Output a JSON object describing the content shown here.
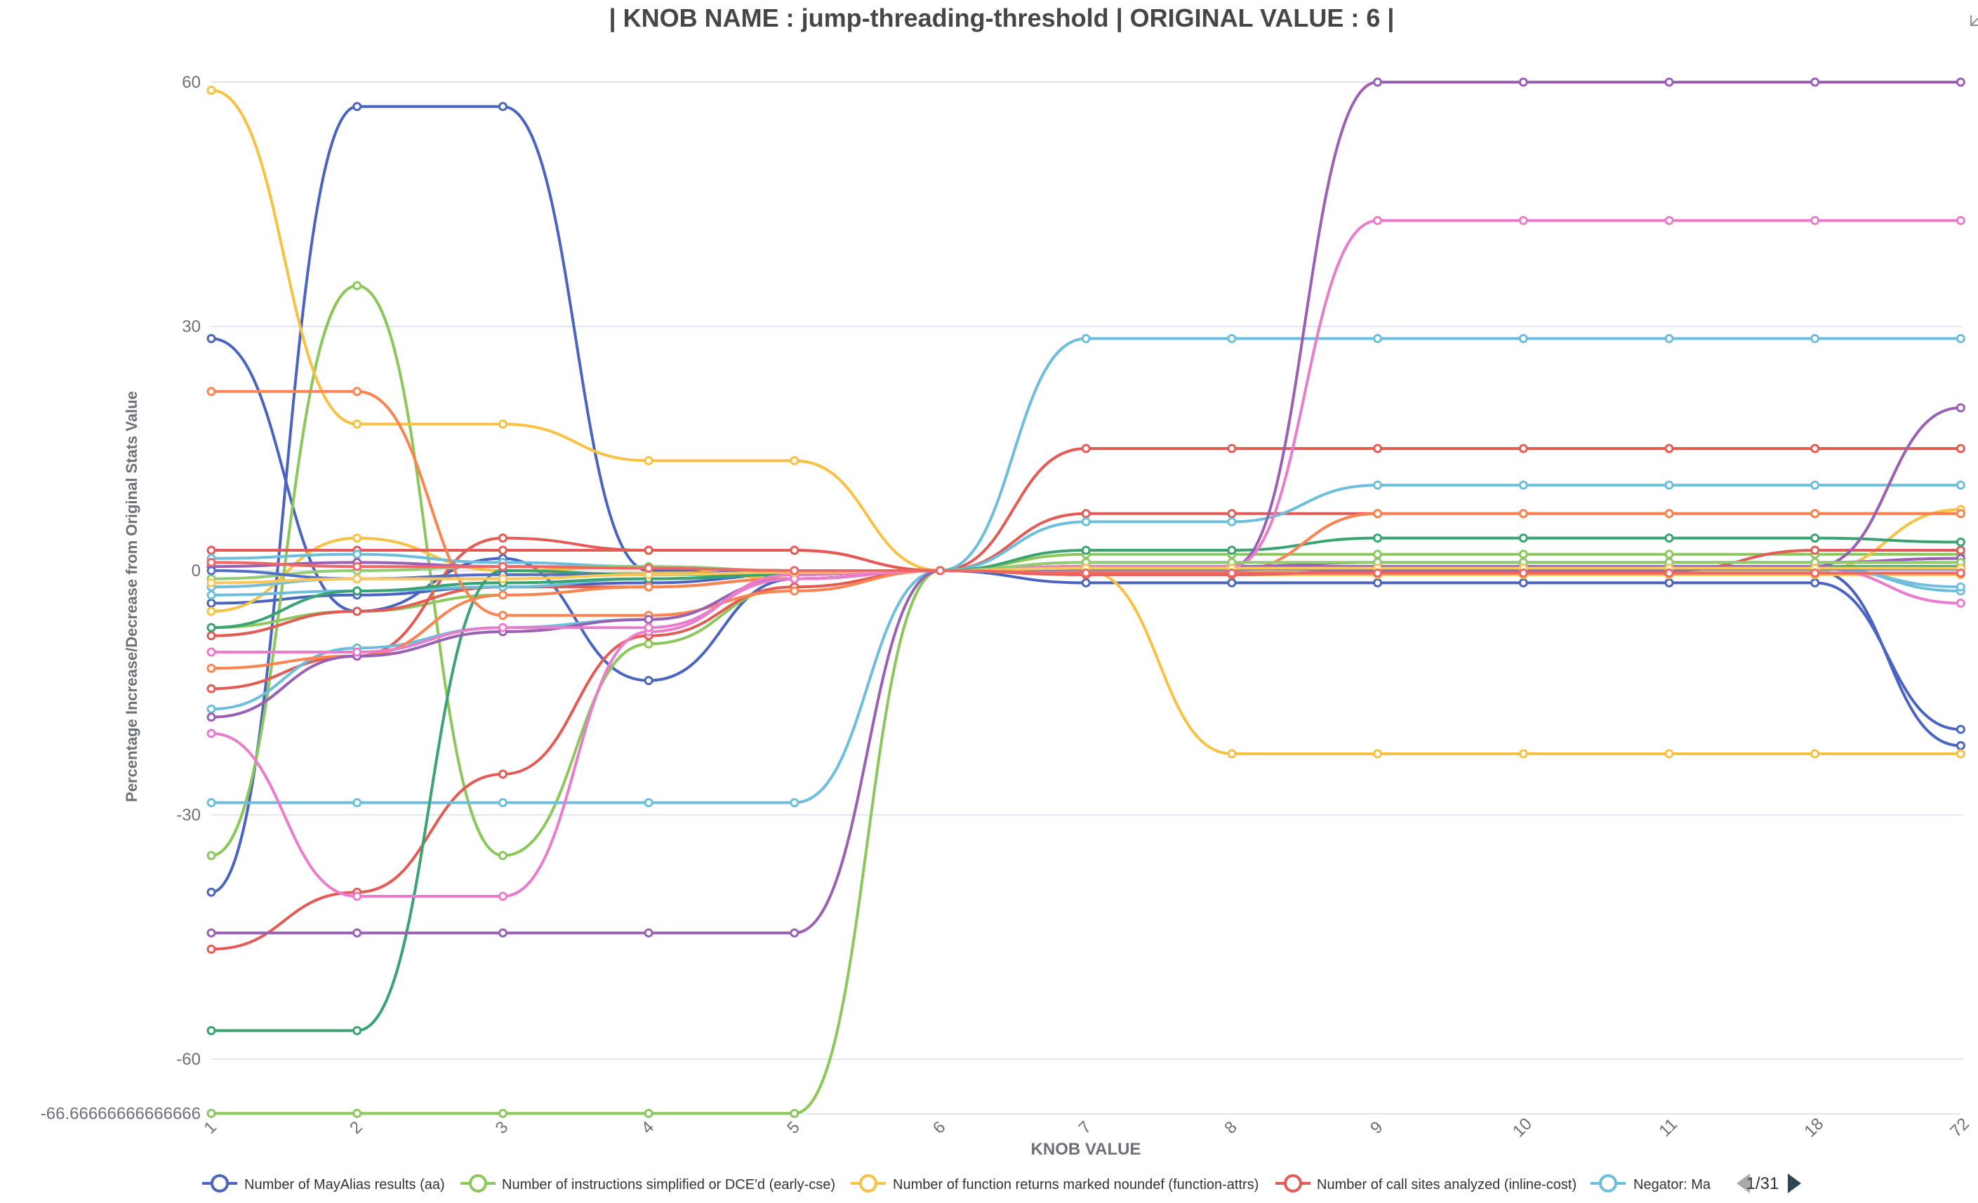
{
  "chart_data": {
    "type": "line",
    "title": "| KNOB NAME : jump-threading-threshold | ORIGINAL VALUE : 6 |",
    "xlabel": "KNOB VALUE",
    "ylabel": "Percentage Increase/Decrease from Original Stats Value",
    "categories": [
      "1",
      "2",
      "3",
      "4",
      "5",
      "6",
      "7",
      "8",
      "9",
      "10",
      "11",
      "18",
      "72"
    ],
    "y_ticks": [
      "60",
      "30",
      "0",
      "-30",
      "-60",
      "-66.66666666666666"
    ],
    "ylim": [
      -66.66666666666666,
      60
    ],
    "grid": true,
    "corner_icon": "expand-icon",
    "legend": {
      "position": "bottom",
      "page": "1/31",
      "items": [
        {
          "name": "Number of MayAlias results (aa)",
          "color": "#4a64bf"
        },
        {
          "name": "Number of instructions simplified or DCE'd (early-cse)",
          "color": "#8cc75c"
        },
        {
          "name": "Number of function returns marked noundef (function-attrs)",
          "color": "#f7c243"
        },
        {
          "name": "Number of call sites analyzed (inline-cost)",
          "color": "#e45b55"
        },
        {
          "name": "Negator: Ma",
          "color": "#6cbedc"
        }
      ]
    },
    "series": [
      {
        "color": "#4a64bf",
        "values": [
          -39.5,
          57,
          57,
          0,
          0,
          0,
          0,
          0,
          0,
          0,
          0,
          0,
          -21.5
        ]
      },
      {
        "color": "#4a64bf",
        "values": [
          28.5,
          -5,
          1.5,
          -13.5,
          -1,
          0,
          -1.5,
          -1.5,
          -1.5,
          -1.5,
          -1.5,
          -1.5,
          -19.5
        ]
      },
      {
        "color": "#4a64bf",
        "values": [
          -4,
          -3,
          -2,
          -1.5,
          -0.5,
          0,
          0.3,
          0.3,
          0.3,
          0.3,
          0.3,
          0.3,
          0.5
        ]
      },
      {
        "color": "#8cc75c",
        "values": [
          -35,
          35,
          -35,
          -9,
          -2,
          0,
          2,
          2,
          2,
          2,
          2,
          2,
          2
        ]
      },
      {
        "color": "#8cc75c",
        "values": [
          -66.67,
          -66.67,
          -66.67,
          -66.67,
          -66.67,
          0,
          0.5,
          0.5,
          0.5,
          0.5,
          0.5,
          0.5,
          0.5
        ]
      },
      {
        "color": "#8cc75c",
        "values": [
          -7,
          -5,
          -3,
          -2,
          -1,
          0,
          0.3,
          0.3,
          0.3,
          0.3,
          0.3,
          0.3,
          0.3
        ]
      },
      {
        "color": "#f7c243",
        "values": [
          59,
          18,
          18,
          13.5,
          13.5,
          0,
          0,
          -22.5,
          -22.5,
          -22.5,
          -22.5,
          -22.5,
          -22.5
        ]
      },
      {
        "color": "#f7c243",
        "values": [
          -5,
          4,
          0,
          0.5,
          -1,
          0,
          0,
          0,
          0,
          0,
          0,
          0,
          7.5
        ]
      },
      {
        "color": "#f7c243",
        "values": [
          -2,
          -1,
          -0.5,
          -0.3,
          -0.2,
          0,
          -0.5,
          -0.5,
          -0.5,
          -0.5,
          -0.5,
          -0.5,
          -0.5
        ]
      },
      {
        "color": "#e45b55",
        "values": [
          -46.5,
          -39.5,
          -25,
          -8,
          -2,
          0,
          15,
          15,
          15,
          15,
          15,
          15,
          15
        ]
      },
      {
        "color": "#e45b55",
        "values": [
          -14.5,
          -10.5,
          4,
          2.5,
          2.5,
          0,
          7,
          7,
          7,
          7,
          7,
          7,
          7
        ]
      },
      {
        "color": "#e45b55",
        "values": [
          2.5,
          2.5,
          2.5,
          2.5,
          2.5,
          0,
          -0.5,
          -0.5,
          0,
          0,
          0,
          2.5,
          2.5
        ]
      },
      {
        "color": "#e45b55",
        "values": [
          -8,
          -5,
          -2,
          -2,
          -1,
          0,
          1,
          1,
          1,
          1,
          1,
          1,
          1
        ]
      },
      {
        "color": "#6cbedc",
        "values": [
          -28.5,
          -28.5,
          -28.5,
          -28.5,
          -28.5,
          0,
          28.5,
          28.5,
          28.5,
          28.5,
          28.5,
          28.5,
          28.5
        ]
      },
      {
        "color": "#6cbedc",
        "values": [
          -17,
          -9.5,
          -7,
          -6,
          -1,
          0,
          6,
          6,
          10.5,
          10.5,
          10.5,
          10.5,
          10.5
        ]
      },
      {
        "color": "#6cbedc",
        "values": [
          1.5,
          2,
          1,
          0.5,
          0,
          0,
          0.5,
          0.5,
          0.5,
          0.5,
          0.5,
          0.5,
          -2.5
        ]
      },
      {
        "color": "#6cbedc",
        "values": [
          -3,
          -2.5,
          -2,
          -1,
          -0.5,
          0,
          0.3,
          0.3,
          0.3,
          0.3,
          0.3,
          0.3,
          0.3
        ]
      },
      {
        "color": "#3ba272",
        "values": [
          -56.5,
          -56.5,
          0,
          -0.5,
          -0.5,
          0,
          2.5,
          2.5,
          4,
          4,
          4,
          4,
          3.5
        ]
      },
      {
        "color": "#3ba272",
        "values": [
          -7,
          -2.5,
          -1.5,
          -1,
          -0.5,
          0,
          0.5,
          0.5,
          0.5,
          0.5,
          0.5,
          0.5,
          0.5
        ]
      },
      {
        "color": "#fc8452",
        "values": [
          22,
          22,
          -5.5,
          -5.5,
          -2.5,
          0,
          0,
          0,
          7,
          7,
          7,
          7,
          7
        ]
      },
      {
        "color": "#fc8452",
        "values": [
          -12,
          -10.5,
          -3,
          -2,
          -1,
          0,
          0.3,
          0.3,
          0.3,
          0.3,
          0.3,
          0.3,
          0.3
        ]
      },
      {
        "color": "#9a60b4",
        "values": [
          -44.5,
          -44.5,
          -44.5,
          -44.5,
          -44.5,
          0,
          0.5,
          0.5,
          60,
          60,
          60,
          60,
          60
        ]
      },
      {
        "color": "#9a60b4",
        "values": [
          -18,
          -10.5,
          -7.5,
          -6,
          -1,
          0,
          0.5,
          0.5,
          0.5,
          0.5,
          0.5,
          0.5,
          20
        ]
      },
      {
        "color": "#9a60b4",
        "values": [
          0.5,
          1,
          0.5,
          0.3,
          0,
          0,
          0.5,
          0.5,
          1,
          1,
          1,
          1,
          1.5
        ]
      },
      {
        "color": "#ea7ccc",
        "values": [
          -20,
          -40,
          -40,
          -7.5,
          -0.5,
          0,
          0.5,
          0.5,
          43,
          43,
          43,
          43,
          43
        ]
      },
      {
        "color": "#ea7ccc",
        "values": [
          -10,
          -10,
          -7,
          -7,
          -1,
          0,
          0.3,
          0.3,
          0.3,
          0.3,
          0.3,
          0.3,
          -4
        ]
      },
      {
        "color": "#91cc75",
        "values": [
          -1,
          0,
          0.5,
          0.5,
          0,
          0,
          1,
          1,
          1,
          1,
          1,
          1,
          1
        ]
      },
      {
        "color": "#73c0de",
        "values": [
          -2,
          -1,
          -1,
          -0.5,
          0,
          0,
          0.3,
          0.3,
          0.3,
          0.3,
          0.3,
          0.3,
          -2
        ]
      },
      {
        "color": "#5470c6",
        "values": [
          0,
          -1,
          -0.5,
          -0.5,
          0,
          0,
          0.2,
          0.2,
          0.2,
          0.2,
          0.2,
          0.2,
          0.2
        ]
      },
      {
        "color": "#fac858",
        "values": [
          -1.5,
          -1,
          -1,
          -0.5,
          -0.2,
          0,
          0.3,
          0.3,
          0.3,
          0.3,
          0.3,
          0.3,
          0.3
        ]
      },
      {
        "color": "#ee6666",
        "values": [
          1,
          0.5,
          0.5,
          0.3,
          0,
          0,
          -0.3,
          -0.3,
          -0.3,
          -0.3,
          -0.3,
          -0.3,
          -0.3
        ]
      }
    ]
  }
}
